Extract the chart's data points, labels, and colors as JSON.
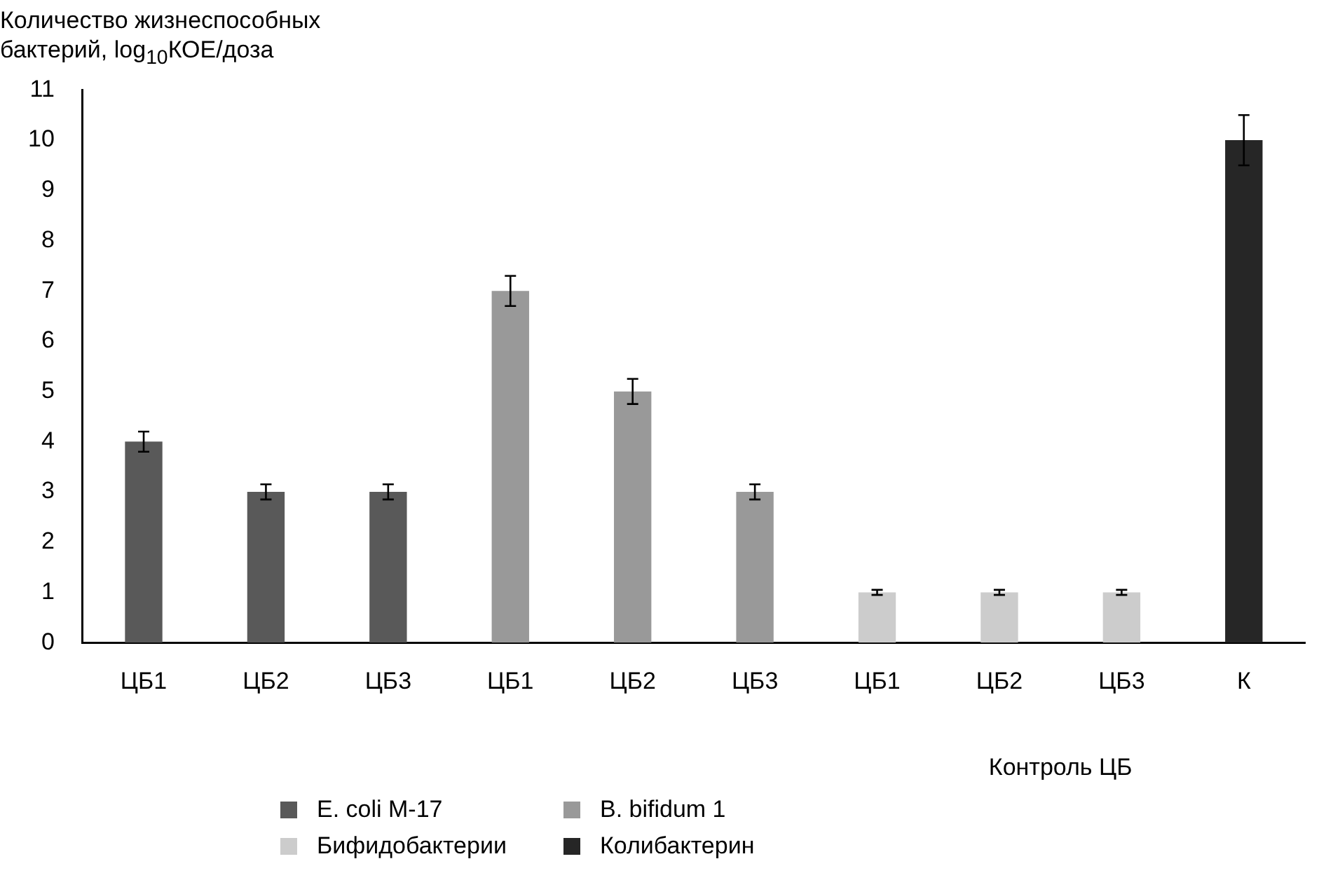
{
  "chart_data": {
    "type": "bar",
    "ylabel": "Количество жизнеспособных бактерий, log$_{10}$КОЕ/доза",
    "categories": [
      "ЦБ1",
      "ЦБ2",
      "ЦБ3",
      "ЦБ1",
      "ЦБ2",
      "ЦБ3",
      "ЦБ1",
      "ЦБ2",
      "ЦБ3",
      "К"
    ],
    "series": [
      {
        "name": "E. coli M-17",
        "color": "#595959",
        "values": [
          4,
          3,
          3,
          null,
          null,
          null,
          null,
          null,
          null,
          null
        ],
        "errors": [
          0.2,
          0.15,
          0.15,
          null,
          null,
          null,
          null,
          null,
          null,
          null
        ]
      },
      {
        "name": "B. bifidum 1",
        "color": "#999999",
        "values": [
          null,
          null,
          null,
          7,
          5,
          3,
          null,
          null,
          null,
          null
        ],
        "errors": [
          null,
          null,
          null,
          0.3,
          0.25,
          0.15,
          null,
          null,
          null,
          null
        ]
      },
      {
        "name": "Бифидобактерии",
        "color": "#cccccc",
        "values": [
          null,
          null,
          null,
          null,
          null,
          null,
          1,
          1,
          1,
          null
        ],
        "errors": [
          null,
          null,
          null,
          null,
          null,
          null,
          0.05,
          0.05,
          0.05,
          null
        ]
      },
      {
        "name": "Колибактерин",
        "color": "#262626",
        "values": [
          null,
          null,
          null,
          null,
          null,
          null,
          null,
          null,
          null,
          10
        ],
        "errors": [
          null,
          null,
          null,
          null,
          null,
          null,
          null,
          null,
          null,
          0.5
        ]
      }
    ],
    "annotations": [
      "Контроль ЦБ"
    ],
    "ylim": [
      0,
      11
    ],
    "yticks": [
      0,
      1,
      2,
      3,
      4,
      5,
      6,
      7,
      8,
      9,
      10,
      11
    ],
    "grid": false,
    "legend": "bottom"
  }
}
